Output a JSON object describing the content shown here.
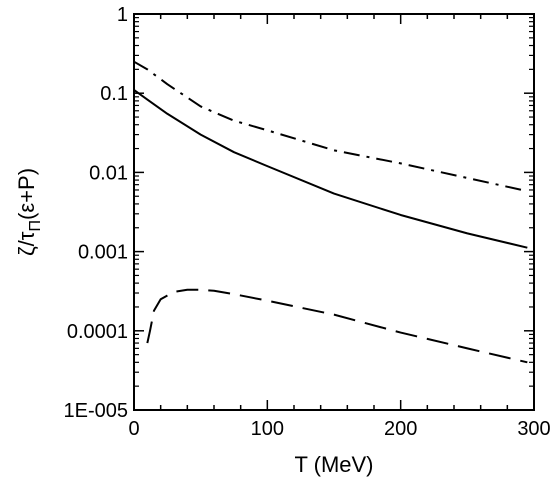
{
  "chart_data": {
    "type": "line",
    "title": "",
    "xlabel": "T (MeV)",
    "ylabel_main": "ζ/τ",
    "ylabel_sub": "Π",
    "ylabel_tail": "(ε+P)",
    "xlim": [
      0,
      300
    ],
    "ylim": [
      1e-05,
      1
    ],
    "yscale": "log",
    "grid": false,
    "legend": "none",
    "x_ticks": [
      0,
      100,
      200,
      300
    ],
    "x_tick_labels": [
      "0",
      "100",
      "200",
      "300"
    ],
    "y_ticks": [
      1e-05,
      0.0001,
      0.001,
      0.01,
      0.1,
      1
    ],
    "y_tick_labels": [
      "1E-005",
      "0.0001",
      "0.001",
      "0.01",
      "0.1",
      "1"
    ],
    "series": [
      {
        "style": "dash-dot",
        "x": [
          0,
          10,
          25,
          50,
          75,
          100,
          150,
          200,
          250,
          295
        ],
        "y": [
          0.25,
          0.2,
          0.13,
          0.068,
          0.045,
          0.034,
          0.019,
          0.013,
          0.0085,
          0.0058
        ]
      },
      {
        "style": "solid",
        "x": [
          0,
          10,
          25,
          50,
          75,
          100,
          150,
          200,
          250,
          295
        ],
        "y": [
          0.11,
          0.083,
          0.055,
          0.03,
          0.018,
          0.012,
          0.0054,
          0.0029,
          0.0017,
          0.00112
        ]
      },
      {
        "style": "dashed",
        "x": [
          10,
          12,
          15,
          20,
          30,
          40,
          50,
          60,
          75,
          100,
          150,
          200,
          250,
          295
        ],
        "y": [
          7e-05,
          0.0001,
          0.00018,
          0.00025,
          0.00031,
          0.00033,
          0.00033,
          0.00032,
          0.00029,
          0.00024,
          0.00016,
          9.5e-05,
          6e-05,
          4e-05
        ]
      }
    ]
  }
}
